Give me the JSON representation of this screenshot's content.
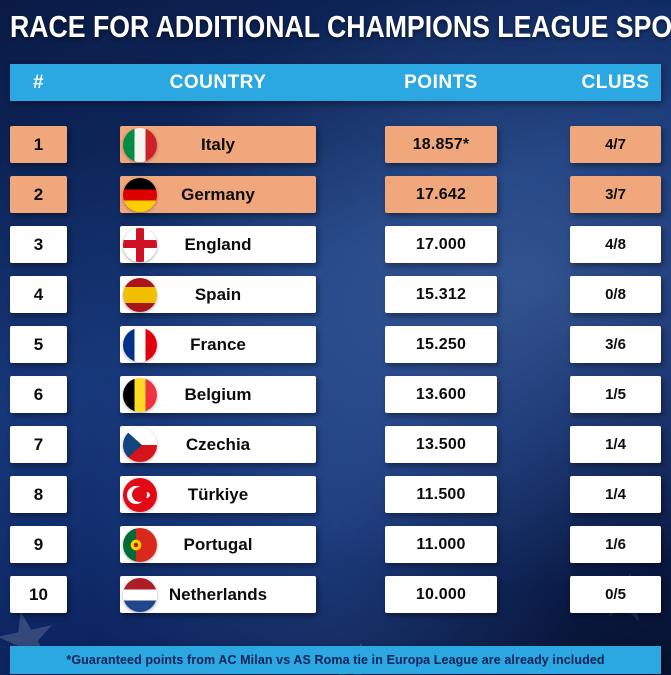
{
  "title": "RACE FOR ADDITIONAL CHAMPIONS LEAGUE SPOTS",
  "header": {
    "rank": "#",
    "country": "COUNTRY",
    "points": "POINTS",
    "clubs": "CLUBS"
  },
  "table": {
    "rows": [
      {
        "rank": "1",
        "country": "Italy",
        "points": "18.857*",
        "clubs": "4/7",
        "flag": "italy",
        "highlight": true
      },
      {
        "rank": "2",
        "country": "Germany",
        "points": "17.642",
        "clubs": "3/7",
        "flag": "germany",
        "highlight": true
      },
      {
        "rank": "3",
        "country": "England",
        "points": "17.000",
        "clubs": "4/8",
        "flag": "england",
        "highlight": false
      },
      {
        "rank": "4",
        "country": "Spain",
        "points": "15.312",
        "clubs": "0/8",
        "flag": "spain",
        "highlight": false
      },
      {
        "rank": "5",
        "country": "France",
        "points": "15.250",
        "clubs": "3/6",
        "flag": "france",
        "highlight": false
      },
      {
        "rank": "6",
        "country": "Belgium",
        "points": "13.600",
        "clubs": "1/5",
        "flag": "belgium",
        "highlight": false
      },
      {
        "rank": "7",
        "country": "Czechia",
        "points": "13.500",
        "clubs": "1/4",
        "flag": "czechia",
        "highlight": false
      },
      {
        "rank": "8",
        "country": "Türkiye",
        "points": "11.500",
        "clubs": "1/4",
        "flag": "turkiye",
        "highlight": false
      },
      {
        "rank": "9",
        "country": "Portugal",
        "points": "11.000",
        "clubs": "1/6",
        "flag": "portugal",
        "highlight": false
      },
      {
        "rank": "10",
        "country": "Netherlands",
        "points": "10.000",
        "clubs": "0/5",
        "flag": "netherlands",
        "highlight": false
      }
    ]
  },
  "footnote": "*Guaranteed points from AC Milan vs AS Roma tie in Europa League are already included",
  "colors": {
    "highlight_salmon": "#f1a77c",
    "header_blue": "#2ba7e2",
    "row_white": "#ffffff",
    "background_navy": "#0c2460",
    "title_text": "#ffffff",
    "footnote_text": "#0d2259"
  },
  "chart_data": {
    "type": "table",
    "title": "RACE FOR ADDITIONAL CHAMPIONS LEAGUE SPOTS",
    "columns": [
      "#",
      "COUNTRY",
      "POINTS",
      "CLUBS"
    ],
    "rows": [
      [
        "1",
        "Italy",
        "18.857*",
        "4/7"
      ],
      [
        "2",
        "Germany",
        "17.642",
        "3/7"
      ],
      [
        "3",
        "England",
        "17.000",
        "4/8"
      ],
      [
        "4",
        "Spain",
        "15.312",
        "0/8"
      ],
      [
        "5",
        "France",
        "15.250",
        "3/6"
      ],
      [
        "6",
        "Belgium",
        "13.600",
        "1/5"
      ],
      [
        "7",
        "Czechia",
        "13.500",
        "1/4"
      ],
      [
        "8",
        "Türkiye",
        "11.500",
        "1/4"
      ],
      [
        "9",
        "Portugal",
        "11.000",
        "1/6"
      ],
      [
        "10",
        "Netherlands",
        "10.000",
        "0/5"
      ]
    ],
    "highlighted_rows": [
      "1",
      "2"
    ],
    "footnote": "*Guaranteed points from AC Milan vs AS Roma tie in Europa League are already included"
  }
}
